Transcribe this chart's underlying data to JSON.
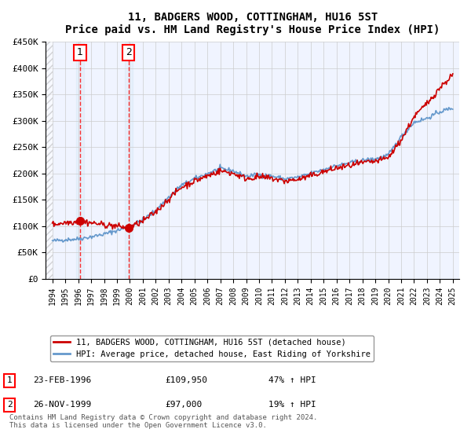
{
  "title": "11, BADGERS WOOD, COTTINGHAM, HU16 5ST",
  "subtitle": "Price paid vs. HM Land Registry's House Price Index (HPI)",
  "legend_line1": "11, BADGERS WOOD, COTTINGHAM, HU16 5ST (detached house)",
  "legend_line2": "HPI: Average price, detached house, East Riding of Yorkshire",
  "transaction1_label": "1",
  "transaction1_date": "23-FEB-1996",
  "transaction1_price": "£109,950",
  "transaction1_hpi": "47% ↑ HPI",
  "transaction1_year": 1996.14,
  "transaction1_value": 109950,
  "transaction2_label": "2",
  "transaction2_date": "26-NOV-1999",
  "transaction2_price": "£97,000",
  "transaction2_hpi": "19% ↑ HPI",
  "transaction2_year": 1999.9,
  "transaction2_value": 97000,
  "ylabel_ticks": [
    "£0",
    "£50K",
    "£100K",
    "£150K",
    "£200K",
    "£250K",
    "£300K",
    "£350K",
    "£400K",
    "£450K"
  ],
  "ytick_values": [
    0,
    50000,
    100000,
    150000,
    200000,
    250000,
    300000,
    350000,
    400000,
    450000
  ],
  "xmin": 1993.5,
  "xmax": 2025.5,
  "ymin": 0,
  "ymax": 450000,
  "line_color_property": "#cc0000",
  "line_color_hpi": "#6699cc",
  "hatch_color": "#cccccc",
  "grid_color": "#cccccc",
  "background_plot": "#f0f4ff",
  "background_hatch_left": "#e0e0e0",
  "footnote": "Contains HM Land Registry data © Crown copyright and database right 2024.\nThis data is licensed under the Open Government Licence v3.0."
}
